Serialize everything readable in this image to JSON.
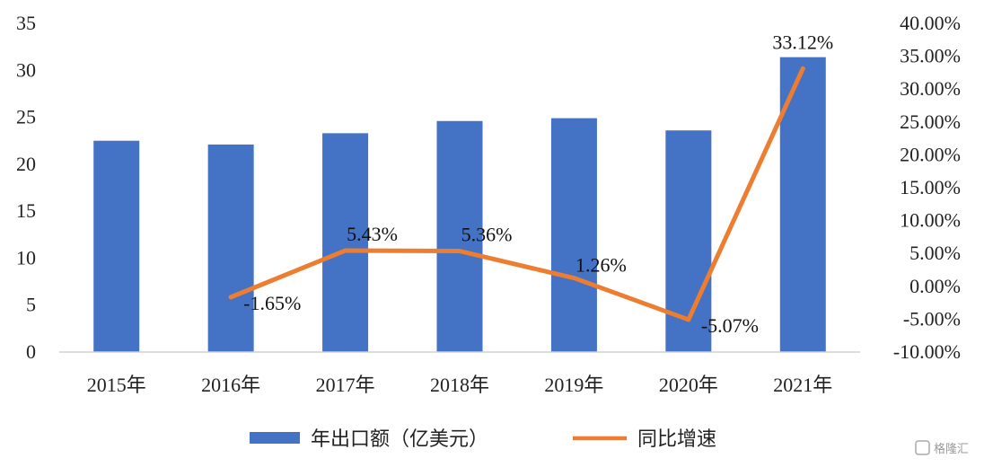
{
  "chart_data": {
    "type": "bar",
    "categories": [
      "2015年",
      "2016年",
      "2017年",
      "2018年",
      "2019年",
      "2020年",
      "2021年"
    ],
    "series": [
      {
        "name": "年出口额（亿美元）",
        "type": "bar",
        "axis": "left",
        "values": [
          22.5,
          22.1,
          23.3,
          24.6,
          24.9,
          23.6,
          31.4
        ],
        "color": "#4472C4"
      },
      {
        "name": "同比增速",
        "type": "line",
        "axis": "right",
        "values": [
          null,
          -1.65,
          5.43,
          5.36,
          1.26,
          -5.07,
          33.12
        ],
        "labels": [
          "",
          "-1.65%",
          "5.43%",
          "5.36%",
          "1.26%",
          "-5.07%",
          "33.12%"
        ],
        "color": "#ED7D31"
      }
    ],
    "ylim": [
      0,
      35
    ],
    "yticks": [
      "0",
      "5",
      "10",
      "15",
      "20",
      "25",
      "30",
      "35"
    ],
    "y2lim": [
      -10,
      40
    ],
    "y2ticks": [
      "-10.00%",
      "-5.00%",
      "0.00%",
      "5.00%",
      "10.00%",
      "15.00%",
      "20.00%",
      "25.00%",
      "30.00%",
      "35.00%",
      "40.00%"
    ],
    "grid": false,
    "legend": "bottom"
  },
  "watermark": "格隆汇"
}
